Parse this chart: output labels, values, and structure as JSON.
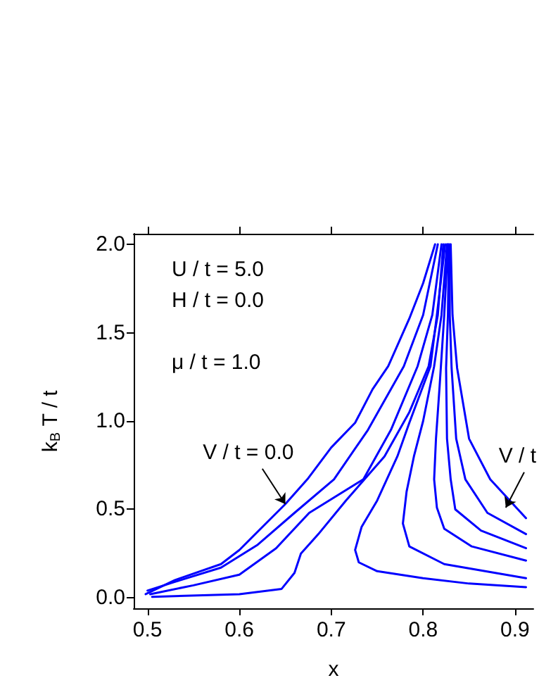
{
  "chart_data": {
    "type": "line",
    "xlabel": "x",
    "ylabel": "k$_{B}$ T / t",
    "xlim": [
      0.485,
      0.92
    ],
    "xticks": [
      0.5,
      0.6,
      0.7,
      0.8,
      0.9
    ],
    "ylim": [
      -0.06,
      2.06
    ],
    "yticks": [
      {
        "value": 0,
        "label": "0.0"
      },
      0.5,
      {
        "value": 1,
        "label": "1.0"
      },
      1.5,
      {
        "value": 2,
        "label": "2.0"
      }
    ],
    "grid": false,
    "marker": "none",
    "line_style": "solid",
    "annotations": [
      "U / t = 5.0",
      "H / t = 0.0",
      "μ / t = 1.0",
      {
        "text": "V / t = 0.0",
        "x": 0.65,
        "y": 0.53
      },
      {
        "text": "V / t",
        "x": 0.89,
        "y": 0.51
      }
    ],
    "series": [
      {
        "color": "#0000ff",
        "x": [
          0.498,
          0.53,
          0.58,
          0.6,
          0.65,
          0.674,
          0.7,
          0.726,
          0.745,
          0.762,
          0.785,
          0.8,
          0.813
        ],
        "values": [
          0.02,
          0.1,
          0.19,
          0.27,
          0.53,
          0.67,
          0.85,
          0.99,
          1.18,
          1.31,
          1.58,
          1.78,
          2.0
        ]
      },
      {
        "color": "#0000ff",
        "x": [
          0.5,
          0.53,
          0.58,
          0.62,
          0.66,
          0.703,
          0.74,
          0.779,
          0.8,
          0.816
        ],
        "values": [
          0.04,
          0.09,
          0.17,
          0.3,
          0.48,
          0.67,
          0.95,
          1.31,
          1.6,
          2.0
        ]
      },
      {
        "color": "#0000ff",
        "x": [
          0.503,
          0.55,
          0.6,
          0.64,
          0.676,
          0.735,
          0.765,
          0.794,
          0.81,
          0.82
        ],
        "values": [
          0.02,
          0.07,
          0.13,
          0.28,
          0.48,
          0.67,
          0.95,
          1.31,
          1.6,
          2.0
        ]
      },
      {
        "color": "#0000ff",
        "x": [
          0.505,
          0.6,
          0.646,
          0.66,
          0.667,
          0.686,
          0.716,
          0.758,
          0.785,
          0.806,
          0.816,
          0.822
        ],
        "values": [
          0.005,
          0.02,
          0.05,
          0.14,
          0.25,
          0.36,
          0.55,
          0.8,
          1.05,
          1.31,
          1.6,
          2.0
        ]
      },
      {
        "color": "#0000ff",
        "x": [
          0.912,
          0.85,
          0.8,
          0.75,
          0.73,
          0.726,
          0.733,
          0.75,
          0.772,
          0.785,
          0.808,
          0.815,
          0.824
        ],
        "values": [
          0.06,
          0.08,
          0.11,
          0.15,
          0.2,
          0.27,
          0.4,
          0.55,
          0.8,
          0.99,
          1.31,
          1.6,
          2.0
        ]
      },
      {
        "color": "#0000ff",
        "x": [
          0.912,
          0.823,
          0.785,
          0.778,
          0.782,
          0.79,
          0.8,
          0.812,
          0.82,
          0.826
        ],
        "values": [
          0.11,
          0.19,
          0.29,
          0.42,
          0.6,
          0.8,
          1.0,
          1.31,
          1.6,
          2.0
        ]
      },
      {
        "color": "#0000ff",
        "x": [
          0.912,
          0.853,
          0.823,
          0.815,
          0.812,
          0.814,
          0.818,
          0.823,
          0.827
        ],
        "values": [
          0.21,
          0.29,
          0.39,
          0.51,
          0.67,
          0.9,
          1.2,
          1.6,
          2.0
        ]
      },
      {
        "color": "#0000ff",
        "x": [
          0.912,
          0.863,
          0.835,
          0.83,
          0.826,
          0.825,
          0.827,
          0.828
        ],
        "values": [
          0.28,
          0.38,
          0.5,
          0.67,
          0.9,
          1.3,
          1.6,
          2.0
        ]
      },
      {
        "color": "#0000ff",
        "x": [
          0.912,
          0.87,
          0.846,
          0.836,
          0.831,
          0.829,
          0.829
        ],
        "values": [
          0.36,
          0.48,
          0.67,
          0.9,
          1.3,
          1.6,
          2.0
        ]
      },
      {
        "color": "#0000ff",
        "x": [
          0.912,
          0.873,
          0.85,
          0.837,
          0.832,
          0.83
        ],
        "values": [
          0.45,
          0.67,
          0.9,
          1.3,
          1.6,
          2.0
        ]
      }
    ]
  }
}
